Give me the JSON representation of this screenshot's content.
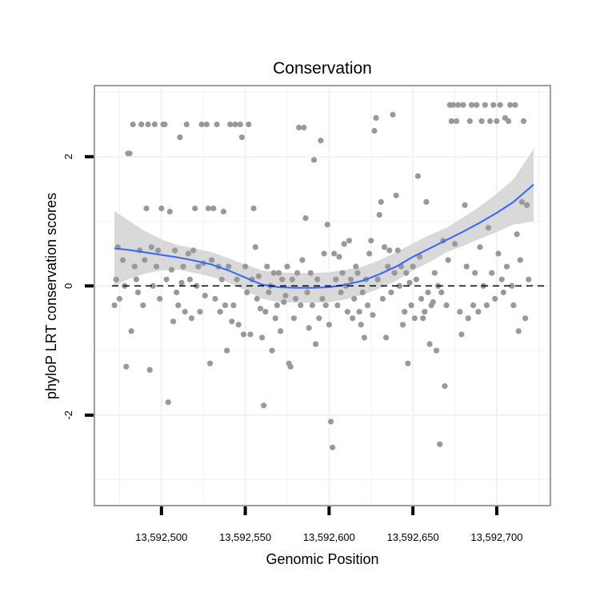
{
  "chart_data": {
    "type": "scatter",
    "title": "Conservation",
    "xlabel": "Genomic Position",
    "ylabel": "phyloP LRT conservation scores",
    "xlim": [
      13592460,
      13592732
    ],
    "ylim": [
      -3.4,
      3.1
    ],
    "x_ticks": [
      13592500,
      13592550,
      13592600,
      13592650,
      13592700
    ],
    "x_tick_labels": [
      "13,592,500",
      "13,592,550",
      "13,592,600",
      "13,592,650",
      "13,592,700"
    ],
    "y_ticks": [
      -2,
      0,
      2
    ],
    "y_tick_labels": [
      "-2",
      "0",
      "2"
    ],
    "reference_line": {
      "y": 0,
      "style": "dashed"
    },
    "colors": {
      "points": "#999999",
      "smooth_line": "#3366ff",
      "ribbon": "#d9d9d9",
      "panel_border": "#7f7f7f",
      "grid": "#f2f2f2"
    },
    "points": [
      [
        13592472,
        -0.3
      ],
      [
        13592473,
        0.1
      ],
      [
        13592474,
        0.6
      ],
      [
        13592475,
        -0.2
      ],
      [
        13592477,
        0.4
      ],
      [
        13592478,
        0
      ],
      [
        13592479,
        -1.25
      ],
      [
        13592480,
        2.05
      ],
      [
        13592481,
        2.05
      ],
      [
        13592482,
        -0.7
      ],
      [
        13592483,
        2.5
      ],
      [
        13592484,
        0.3
      ],
      [
        13592485,
        0.1
      ],
      [
        13592486,
        -0.1
      ],
      [
        13592487,
        0.55
      ],
      [
        13592488,
        2.5
      ],
      [
        13592489,
        -0.3
      ],
      [
        13592490,
        0.4
      ],
      [
        13592491,
        1.2
      ],
      [
        13592492,
        2.5
      ],
      [
        13592493,
        -1.3
      ],
      [
        13592494,
        0.6
      ],
      [
        13592495,
        0
      ],
      [
        13592496,
        2.5
      ],
      [
        13592497,
        0.3
      ],
      [
        13592498,
        0.55
      ],
      [
        13592499,
        -0.2
      ],
      [
        13592500,
        1.2
      ],
      [
        13592501,
        2.5
      ],
      [
        13592502,
        2.5
      ],
      [
        13592503,
        0.1
      ],
      [
        13592504,
        -1.8
      ],
      [
        13592505,
        1.15
      ],
      [
        13592506,
        0.25
      ],
      [
        13592507,
        -0.55
      ],
      [
        13592508,
        0.55
      ],
      [
        13592509,
        -0.1
      ],
      [
        13592510,
        -0.3
      ],
      [
        13592511,
        2.3
      ],
      [
        13592512,
        0.05
      ],
      [
        13592513,
        0.3
      ],
      [
        13592514,
        -0.4
      ],
      [
        13592515,
        2.5
      ],
      [
        13592516,
        0.5
      ],
      [
        13592517,
        0.1
      ],
      [
        13592518,
        -0.5
      ],
      [
        13592519,
        0.55
      ],
      [
        13592520,
        1.2
      ],
      [
        13592521,
        0
      ],
      [
        13592522,
        0.3
      ],
      [
        13592523,
        -0.4
      ],
      [
        13592524,
        2.5
      ],
      [
        13592525,
        0.35
      ],
      [
        13592526,
        -0.15
      ],
      [
        13592527,
        2.5
      ],
      [
        13592528,
        1.2
      ],
      [
        13592529,
        -1.2
      ],
      [
        13592530,
        0.4
      ],
      [
        13592531,
        1.2
      ],
      [
        13592532,
        -0.2
      ],
      [
        13592533,
        2.5
      ],
      [
        13592534,
        0.3
      ],
      [
        13592535,
        -0.4
      ],
      [
        13592536,
        0.1
      ],
      [
        13592537,
        1.15
      ],
      [
        13592538,
        -0.3
      ],
      [
        13592539,
        -1
      ],
      [
        13592540,
        0.3
      ],
      [
        13592541,
        2.5
      ],
      [
        13592542,
        -0.55
      ],
      [
        13592543,
        -0.3
      ],
      [
        13592544,
        2.5
      ],
      [
        13592545,
        0.1
      ],
      [
        13592546,
        -0.6
      ],
      [
        13592547,
        2.5
      ],
      [
        13592548,
        2.3
      ],
      [
        13592549,
        -0.75
      ],
      [
        13592550,
        0.3
      ],
      [
        13592551,
        -0.1
      ],
      [
        13592552,
        2.5
      ],
      [
        13592553,
        -0.75
      ],
      [
        13592554,
        0.1
      ],
      [
        13592555,
        1.2
      ],
      [
        13592556,
        0.6
      ],
      [
        13592557,
        -0.2
      ],
      [
        13592558,
        0.15
      ],
      [
        13592559,
        -0.35
      ],
      [
        13592560,
        -0.8
      ],
      [
        13592561,
        -1.85
      ],
      [
        13592562,
        -0.4
      ],
      [
        13592563,
        0.3
      ],
      [
        13592564,
        -0.1
      ],
      [
        13592565,
        0
      ],
      [
        13592566,
        -1
      ],
      [
        13592567,
        0.2
      ],
      [
        13592568,
        -0.5
      ],
      [
        13592569,
        -0.3
      ],
      [
        13592570,
        0.2
      ],
      [
        13592571,
        -0.7
      ],
      [
        13592572,
        0.1
      ],
      [
        13592573,
        -0.25
      ],
      [
        13592574,
        -0.15
      ],
      [
        13592575,
        0.3
      ],
      [
        13592576,
        -1.2
      ],
      [
        13592577,
        -1.25
      ],
      [
        13592578,
        0.1
      ],
      [
        13592579,
        -0.5
      ],
      [
        13592580,
        -0.2
      ],
      [
        13592581,
        0.2
      ],
      [
        13592582,
        2.45
      ],
      [
        13592583,
        -0.3
      ],
      [
        13592584,
        0.4
      ],
      [
        13592585,
        2.45
      ],
      [
        13592586,
        1.05
      ],
      [
        13592587,
        -0.1
      ],
      [
        13592588,
        -0.65
      ],
      [
        13592589,
        0.2
      ],
      [
        13592590,
        -0.3
      ],
      [
        13592591,
        1.95
      ],
      [
        13592592,
        -0.9
      ],
      [
        13592593,
        0.1
      ],
      [
        13592594,
        -0.5
      ],
      [
        13592595,
        2.25
      ],
      [
        13592596,
        -0.2
      ],
      [
        13592597,
        0.5
      ],
      [
        13592598,
        -0.3
      ],
      [
        13592599,
        0.95
      ],
      [
        13592600,
        -0.6
      ],
      [
        13592601,
        -2.1
      ],
      [
        13592602,
        -2.5
      ],
      [
        13592603,
        0.5
      ],
      [
        13592604,
        0.1
      ],
      [
        13592605,
        -0.3
      ],
      [
        13592606,
        0.45
      ],
      [
        13592607,
        -0.1
      ],
      [
        13592608,
        0.2
      ],
      [
        13592609,
        0.65
      ],
      [
        13592610,
        0
      ],
      [
        13592611,
        -0.4
      ],
      [
        13592612,
        0.7
      ],
      [
        13592613,
        0.1
      ],
      [
        13592614,
        -0.5
      ],
      [
        13592615,
        -0.2
      ],
      [
        13592616,
        0.3
      ],
      [
        13592617,
        0.2
      ],
      [
        13592618,
        -0.4
      ],
      [
        13592619,
        -0.6
      ],
      [
        13592620,
        -0.1
      ],
      [
        13592621,
        -0.8
      ],
      [
        13592622,
        0.1
      ],
      [
        13592623,
        -0.3
      ],
      [
        13592624,
        0.5
      ],
      [
        13592625,
        0.7
      ],
      [
        13592626,
        -0.45
      ],
      [
        13592627,
        2.4
      ],
      [
        13592628,
        2.6
      ],
      [
        13592629,
        0.1
      ],
      [
        13592630,
        1.1
      ],
      [
        13592631,
        1.3
      ],
      [
        13592632,
        -0.2
      ],
      [
        13592633,
        0.6
      ],
      [
        13592634,
        -0.8
      ],
      [
        13592635,
        0.3
      ],
      [
        13592636,
        0.55
      ],
      [
        13592637,
        -0.1
      ],
      [
        13592638,
        2.65
      ],
      [
        13592639,
        0.2
      ],
      [
        13592640,
        1.4
      ],
      [
        13592641,
        0.55
      ],
      [
        13592642,
        0
      ],
      [
        13592643,
        0.3
      ],
      [
        13592644,
        -0.6
      ],
      [
        13592645,
        -0.4
      ],
      [
        13592646,
        0.2
      ],
      [
        13592647,
        -1.2
      ],
      [
        13592648,
        0.05
      ],
      [
        13592649,
        -0.3
      ],
      [
        13592650,
        0.3
      ],
      [
        13592651,
        -0.5
      ],
      [
        13592652,
        0.1
      ],
      [
        13592653,
        1.7
      ],
      [
        13592654,
        0.45
      ],
      [
        13592655,
        -0.2
      ],
      [
        13592656,
        -0.5
      ],
      [
        13592657,
        -0.4
      ],
      [
        13592658,
        1.3
      ],
      [
        13592659,
        -0.1
      ],
      [
        13592660,
        -0.9
      ],
      [
        13592661,
        -0.3
      ],
      [
        13592662,
        -0.25
      ],
      [
        13592663,
        0.2
      ],
      [
        13592664,
        -1
      ],
      [
        13592665,
        0
      ],
      [
        13592666,
        -2.45
      ],
      [
        13592667,
        -0.1
      ],
      [
        13592668,
        0.7
      ],
      [
        13592669,
        -1.55
      ],
      [
        13592670,
        -0.3
      ],
      [
        13592671,
        0.4
      ],
      [
        13592672,
        2.8
      ],
      [
        13592673,
        2.55
      ],
      [
        13592674,
        2.8
      ],
      [
        13592675,
        0.65
      ],
      [
        13592676,
        2.55
      ],
      [
        13592677,
        2.8
      ],
      [
        13592678,
        -0.4
      ],
      [
        13592679,
        -0.75
      ],
      [
        13592680,
        2.8
      ],
      [
        13592681,
        1.25
      ],
      [
        13592682,
        0.3
      ],
      [
        13592683,
        -0.5
      ],
      [
        13592684,
        2.55
      ],
      [
        13592685,
        2.8
      ],
      [
        13592686,
        -0.3
      ],
      [
        13592687,
        0.2
      ],
      [
        13592688,
        2.8
      ],
      [
        13592689,
        -0.4
      ],
      [
        13592690,
        0.6
      ],
      [
        13592691,
        2.55
      ],
      [
        13592692,
        0
      ],
      [
        13592693,
        2.8
      ],
      [
        13592694,
        -0.3
      ],
      [
        13592695,
        0.9
      ],
      [
        13592696,
        2.55
      ],
      [
        13592697,
        0.2
      ],
      [
        13592698,
        2.8
      ],
      [
        13592699,
        -0.2
      ],
      [
        13592700,
        2.55
      ],
      [
        13592701,
        0.5
      ],
      [
        13592702,
        2.8
      ],
      [
        13592703,
        0.1
      ],
      [
        13592704,
        -0.1
      ],
      [
        13592705,
        2.6
      ],
      [
        13592706,
        0.3
      ],
      [
        13592707,
        2.55
      ],
      [
        13592708,
        2.8
      ],
      [
        13592709,
        0
      ],
      [
        13592710,
        -0.3
      ],
      [
        13592711,
        2.8
      ],
      [
        13592712,
        0.8
      ],
      [
        13592713,
        -0.7
      ],
      [
        13592714,
        0.4
      ],
      [
        13592715,
        1.3
      ],
      [
        13592716,
        2.55
      ],
      [
        13592717,
        -0.5
      ],
      [
        13592718,
        1.25
      ],
      [
        13592719,
        0.1
      ]
    ],
    "smooth": {
      "x": [
        13592472,
        13592480,
        13592490,
        13592500,
        13592510,
        13592520,
        13592530,
        13592540,
        13592550,
        13592560,
        13592570,
        13592580,
        13592590,
        13592600,
        13592610,
        13592620,
        13592630,
        13592640,
        13592650,
        13592660,
        13592670,
        13592680,
        13592690,
        13592700,
        13592710,
        13592722
      ],
      "y": [
        0.58,
        0.56,
        0.52,
        0.48,
        0.44,
        0.39,
        0.33,
        0.24,
        0.13,
        0.02,
        -0.02,
        -0.03,
        -0.03,
        -0.02,
        0.02,
        0.08,
        0.18,
        0.3,
        0.45,
        0.58,
        0.71,
        0.84,
        0.98,
        1.13,
        1.3,
        1.57
      ],
      "lower": [
        0.0,
        0.1,
        0.19,
        0.24,
        0.25,
        0.2,
        0.14,
        0.05,
        -0.07,
        -0.2,
        -0.25,
        -0.26,
        -0.26,
        -0.25,
        -0.21,
        -0.14,
        -0.04,
        0.08,
        0.24,
        0.37,
        0.52,
        0.62,
        0.73,
        0.83,
        0.95,
        1.0
      ],
      "upper": [
        1.16,
        1.02,
        0.85,
        0.72,
        0.63,
        0.58,
        0.52,
        0.43,
        0.33,
        0.24,
        0.21,
        0.2,
        0.2,
        0.21,
        0.25,
        0.3,
        0.4,
        0.52,
        0.66,
        0.79,
        0.9,
        1.06,
        1.23,
        1.43,
        1.65,
        2.12
      ]
    }
  }
}
